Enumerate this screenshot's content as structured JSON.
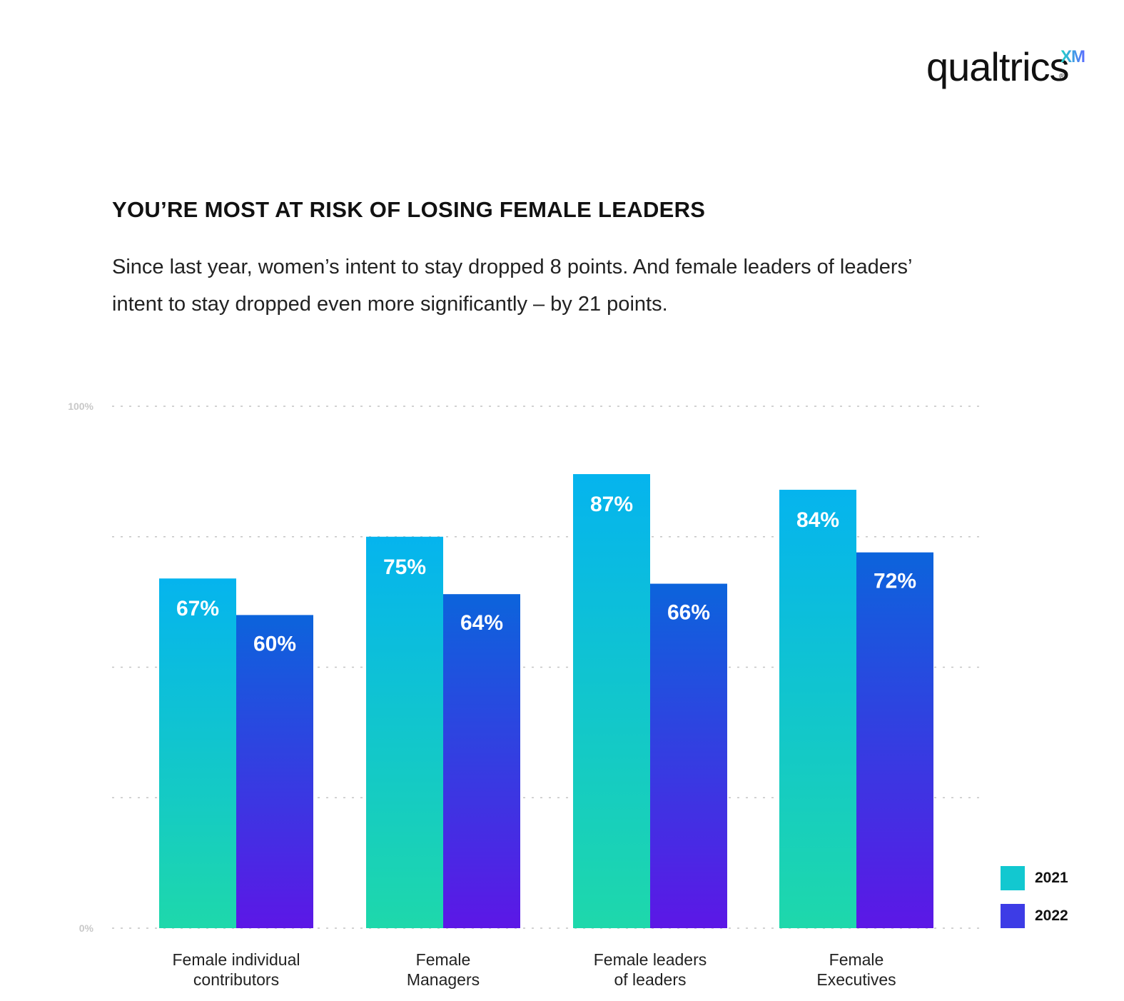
{
  "brand": {
    "wordmark": "qualtrics",
    "suffix": "XM",
    "registered": "®"
  },
  "chart_data": {
    "type": "bar",
    "title": "YOU’RE MOST AT RISK OF LOSING FEMALE LEADERS",
    "subtitle": "Since last year, women’s intent to stay dropped 8 points. And female leaders of leaders’ intent to stay dropped even more significantly – by 21 points.",
    "categories": [
      [
        "Female individual",
        "contributors"
      ],
      [
        "Female",
        "Managers"
      ],
      [
        "Female leaders",
        "of leaders"
      ],
      [
        "Female",
        "Executives"
      ]
    ],
    "series": [
      {
        "name": "2021",
        "values": [
          67,
          75,
          87,
          84
        ],
        "labels": [
          "67%",
          "75%",
          "87%",
          "84%"
        ],
        "color_top": "#05b4ee",
        "color_bottom": "#1ed8ab"
      },
      {
        "name": "2022",
        "values": [
          60,
          64,
          66,
          72
        ],
        "labels": [
          "60%",
          "64%",
          "66%",
          "72%"
        ],
        "color_top": "#0c64dc",
        "color_bottom": "#5c17e6"
      }
    ],
    "ylim": [
      0,
      100
    ],
    "yticks": [
      {
        "value": 0,
        "label": "0%"
      },
      {
        "value": 25,
        "label": ""
      },
      {
        "value": 50,
        "label": ""
      },
      {
        "value": 75,
        "label": ""
      },
      {
        "value": 100,
        "label": "100%"
      }
    ],
    "grid": true,
    "legend_position": "bottom-right"
  }
}
